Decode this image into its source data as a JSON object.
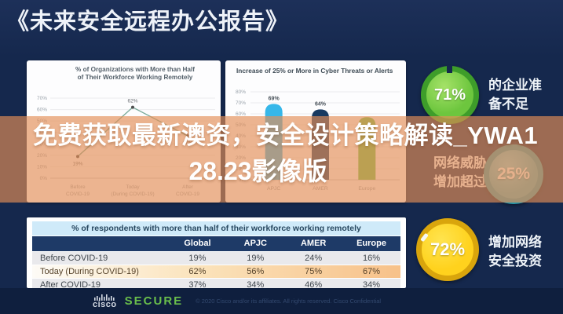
{
  "page": {
    "title": "《未来安全远程办公报告》"
  },
  "overlay": {
    "line1": "免费获取最新澳资，安全设计策略解读_YWA1",
    "line2": "28.23影像版",
    "color": "#e48e56"
  },
  "chart_data": [
    {
      "type": "line",
      "title": "% of Organizations with More than Half of Their Workforce Working Remotely",
      "title_lines": [
        "% of Organizations with More than Half",
        "of Their Workforce Working Remotely"
      ],
      "categories": [
        "Before COVID-19",
        "Today (During COVID-19)",
        "After COVID-19"
      ],
      "category_lines": [
        [
          "Before",
          "COVID-19"
        ],
        [
          "Today",
          "(During COVID-19)"
        ],
        [
          "After",
          "COVID-19"
        ]
      ],
      "values": [
        19,
        62,
        37
      ],
      "point_labels": [
        "19%",
        "62%",
        "37%"
      ],
      "label_positions": [
        "below",
        "above",
        "below"
      ],
      "ylim": [
        0,
        70
      ],
      "ytick_step": 10,
      "grid": true,
      "legend": "none",
      "line_color": "#7aab9a",
      "point_color": "#4d4d4d"
    },
    {
      "type": "bar",
      "title": "Increase of 25% or More in Cyber Threats or Alerts",
      "categories": [
        "APJC",
        "AMER",
        "Europe"
      ],
      "values": [
        69,
        64,
        57
      ],
      "bar_labels": [
        "69%",
        "64%",
        ""
      ],
      "bar_colors": [
        "#36b7e9",
        "#183a61",
        "#6cc04a"
      ],
      "ylim": [
        0,
        80
      ],
      "ytick_step": 10,
      "grid": true,
      "legend": "none"
    },
    {
      "type": "table",
      "title": "% of respondents with more than half of their workforce working remotely",
      "columns": [
        "",
        "Global",
        "APJC",
        "AMER",
        "Europe"
      ],
      "rows": [
        [
          "Before COVID-19",
          "19%",
          "19%",
          "24%",
          "16%"
        ],
        [
          "Today (During COVID-19)",
          "62%",
          "56%",
          "75%",
          "67%"
        ],
        [
          "After COVID-19",
          "37%",
          "34%",
          "46%",
          "34%"
        ]
      ]
    }
  ],
  "stats": [
    {
      "value": "71%",
      "label_line1": "的企业准",
      "label_line2": "备不足",
      "color": "#6dc63e",
      "color_light": "#a5e268",
      "ring": "#3e9d2a"
    },
    {
      "value": "25%",
      "label_line1": "网络威胁",
      "label_line2": "增加超过",
      "color": "#48aab6",
      "color_light": "#7fc9d1",
      "ring": "#2b96a6"
    },
    {
      "value": "72%",
      "label_line1": "增加网络",
      "label_line2": "安全投资",
      "color": "#ffd21d",
      "color_light": "#ffe44f",
      "ring": "#d9a50c"
    }
  ],
  "footer": {
    "brand": "cisco",
    "product": "SECURE",
    "copyright": "© 2020 Cisco and/or its affiliates. All rights reserved. Cisco Confidential"
  }
}
